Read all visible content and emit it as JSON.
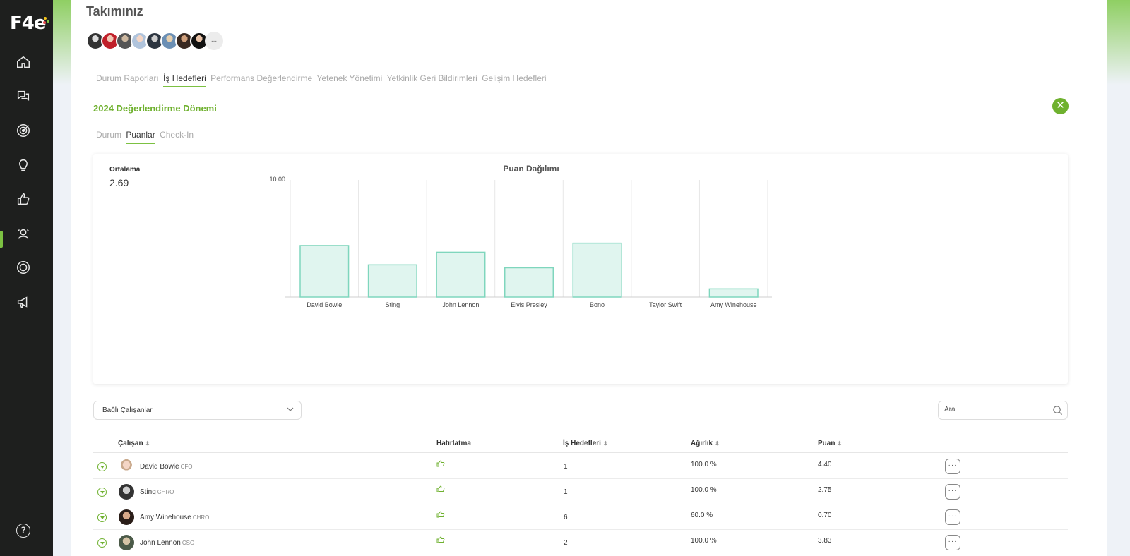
{
  "app": {
    "logo_text": "F4e",
    "help_label": "?"
  },
  "sidebar": {
    "items": [
      {
        "icon": "home-icon"
      },
      {
        "icon": "chat-icon"
      },
      {
        "icon": "target-icon"
      },
      {
        "icon": "lightbulb-icon"
      },
      {
        "icon": "thumbs-up-icon"
      },
      {
        "icon": "team-icon",
        "active": true
      },
      {
        "icon": "settings-ring-icon"
      },
      {
        "icon": "megaphone-icon"
      }
    ]
  },
  "page": {
    "title": "Takımınız",
    "avatars_more": "..."
  },
  "tabs": [
    {
      "label": "Durum Raporları",
      "active": false
    },
    {
      "label": "İş Hedefleri",
      "active": true
    },
    {
      "label": "Performans Değerlendirme",
      "active": false
    },
    {
      "label": "Yetenek Yönetimi",
      "active": false
    },
    {
      "label": "Yetkinlik Geri Bildirimleri",
      "active": false
    },
    {
      "label": "Gelişim Hedefleri",
      "active": false
    }
  ],
  "period": {
    "title": "2024 Değerlendirme Dönemi",
    "close_icon": "close-icon"
  },
  "subtabs": [
    {
      "label": "Durum",
      "active": false
    },
    {
      "label": "Puanlar",
      "active": true
    },
    {
      "label": "Check-In",
      "active": false
    }
  ],
  "summary": {
    "average_label": "Ortalama",
    "average_value": "2.69"
  },
  "chart_data": {
    "type": "bar",
    "title": "Puan Dağılımı",
    "categories": [
      "David Bowie",
      "Sting",
      "John Lennon",
      "Elvis Presley",
      "Bono",
      "Taylor Swift",
      "Amy Winehouse"
    ],
    "values": [
      4.4,
      2.75,
      3.83,
      2.5,
      4.6,
      0,
      0.7
    ],
    "ylim": [
      0,
      10
    ],
    "y_tick_label": "10.00",
    "bar_fill": "#e0f5ef",
    "bar_stroke": "#7fd6bd",
    "grid": "vertical"
  },
  "filters": {
    "dropdown_label": "Bağlı Çalışanlar",
    "search_placeholder": "Ara"
  },
  "table": {
    "headers": {
      "employee": "Çalışan",
      "reminder": "Hatırlatma",
      "goals": "İş Hedefleri",
      "weight": "Ağırlık",
      "score": "Puan"
    },
    "rows": [
      {
        "name": "David Bowie",
        "title": "CFO",
        "goals": "1",
        "weight": "100.0 %",
        "score": "4.40",
        "actions": "···"
      },
      {
        "name": "Sting",
        "title": "CHRO",
        "goals": "1",
        "weight": "100.0 %",
        "score": "2.75",
        "actions": "···"
      },
      {
        "name": "Amy Winehouse",
        "title": "CHRO",
        "goals": "6",
        "weight": "60.0 %",
        "score": "0.70",
        "actions": "···"
      },
      {
        "name": "John Lennon",
        "title": "CSO",
        "goals": "2",
        "weight": "100.0 %",
        "score": "3.83",
        "actions": "···"
      }
    ]
  },
  "colors": {
    "accent": "#6fb12f",
    "sidebar_bg": "#1e1f1e"
  }
}
